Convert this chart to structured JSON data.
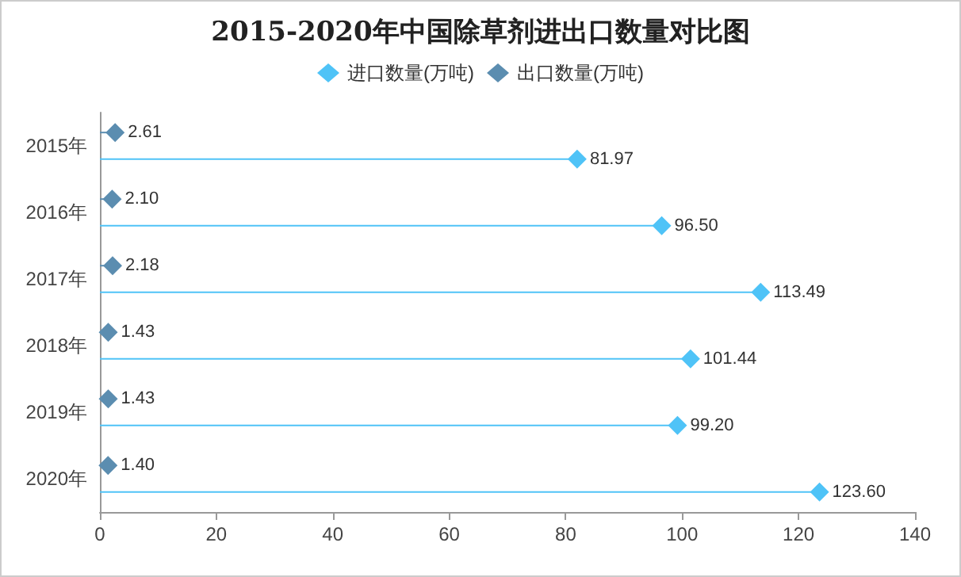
{
  "chart_data": {
    "type": "lollipop",
    "title": "2015-2020年中国除草剂进出口数量对比图",
    "orientation": "horizontal",
    "categories": [
      "2015年",
      "2016年",
      "2017年",
      "2018年",
      "2019年",
      "2020年"
    ],
    "series": [
      {
        "name": "进口数量(万吨)",
        "color": "#4fc3f7",
        "values": [
          81.97,
          96.5,
          113.49,
          101.44,
          99.2,
          123.6
        ],
        "value_labels": [
          "81.97",
          "96.50",
          "113.49",
          "101.44",
          "99.20",
          "123.60"
        ]
      },
      {
        "name": "出口数量(万吨)",
        "color": "#5b8db0",
        "values": [
          2.61,
          2.1,
          2.18,
          1.43,
          1.43,
          1.4
        ],
        "value_labels": [
          "2.61",
          "2.10",
          "2.18",
          "1.43",
          "1.43",
          "1.40"
        ]
      }
    ],
    "xlim": [
      0,
      140
    ],
    "xticks": [
      0,
      20,
      40,
      60,
      80,
      100,
      120,
      140
    ],
    "legend": "top",
    "marker": "diamond"
  }
}
